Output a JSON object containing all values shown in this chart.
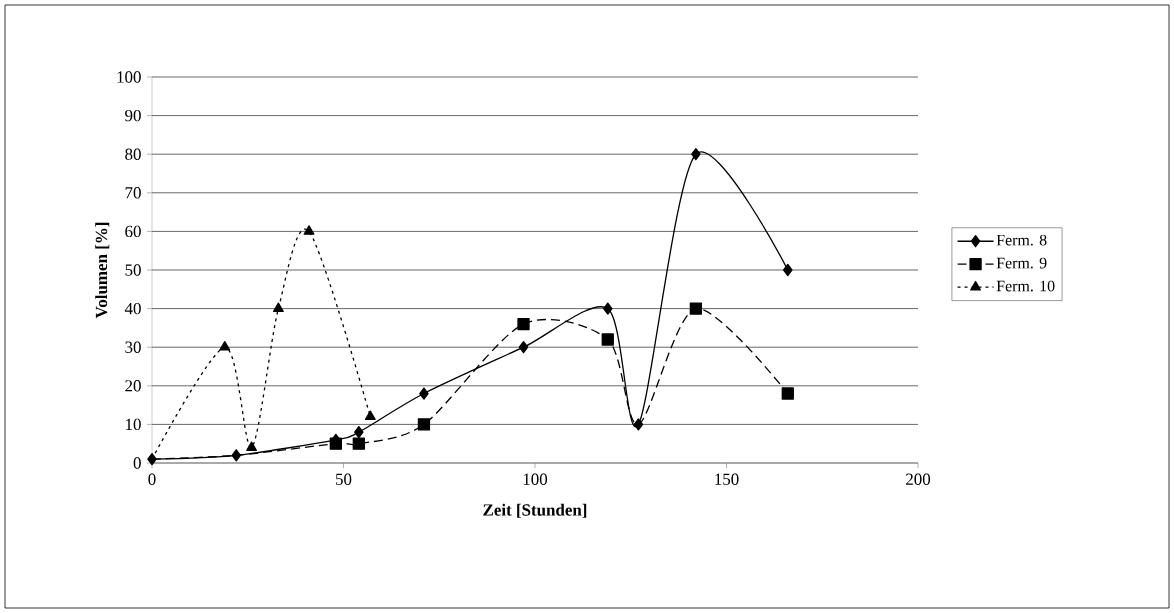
{
  "chart_data": {
    "type": "line",
    "xlabel": "Zeit [Stunden]",
    "ylabel": "Volumen [%]",
    "xlim": [
      0,
      200
    ],
    "xticks": [
      0,
      50,
      100,
      150,
      200
    ],
    "ylim": [
      0,
      100
    ],
    "yticks": [
      0,
      10,
      20,
      30,
      40,
      50,
      60,
      70,
      80,
      90,
      100
    ],
    "grid": "y",
    "legend": "right",
    "series": [
      {
        "name": "Ferm. 8",
        "color": "#000000",
        "marker": "diamond",
        "line_style": "solid",
        "x": [
          0,
          22,
          48,
          54,
          71,
          97,
          119,
          127,
          142,
          166
        ],
        "values": [
          1,
          2,
          6,
          8,
          18,
          30,
          40,
          10,
          80,
          50
        ]
      },
      {
        "name": "Ferm. 9",
        "color": "#000000",
        "marker": "square",
        "line_style": "dashed",
        "x": [
          0,
          22,
          48,
          54,
          71,
          97,
          119,
          127,
          142,
          166
        ],
        "values": [
          1,
          2,
          5,
          5,
          10,
          36,
          32,
          10,
          40,
          18
        ]
      },
      {
        "name": "Ferm. 10",
        "color": "#000000",
        "marker": "triangle",
        "line_style": "dotted",
        "x": [
          0,
          19,
          26,
          33,
          41,
          57
        ],
        "values": [
          1,
          30,
          4,
          40,
          60,
          12
        ]
      }
    ]
  }
}
